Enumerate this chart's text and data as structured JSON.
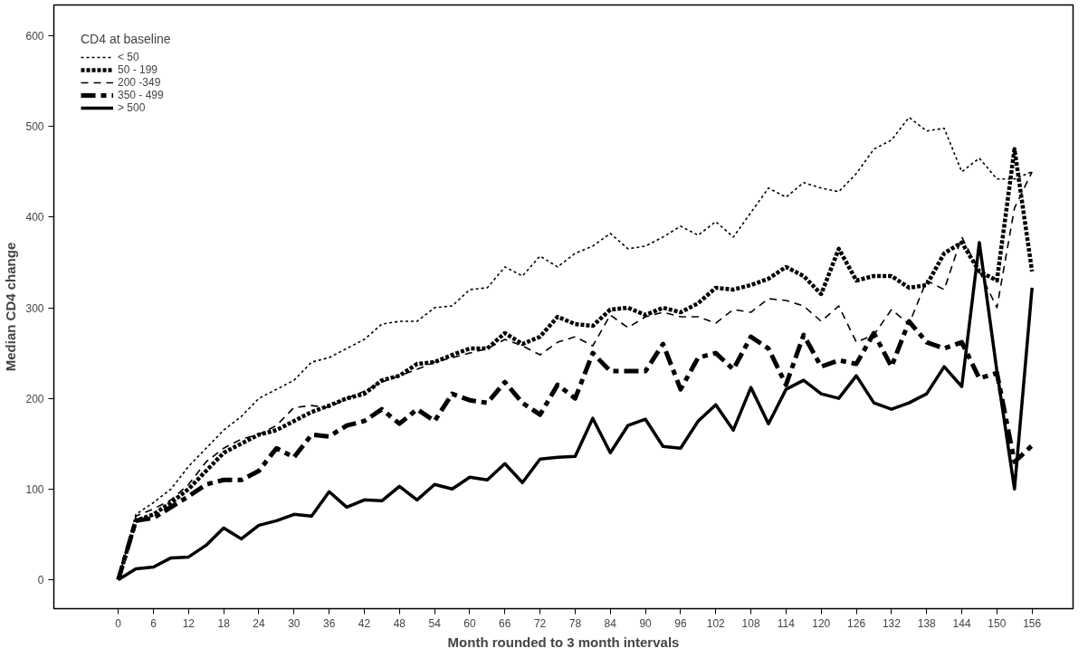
{
  "chart_data": {
    "type": "line",
    "xlabel": "Month rounded to 3 month intervals",
    "ylabel": "Median CD4 change",
    "legend_title": "CD4 at baseline",
    "legend": "top left",
    "grid": false,
    "x": [
      0,
      3,
      6,
      9,
      12,
      15,
      18,
      21,
      24,
      27,
      30,
      33,
      36,
      39,
      42,
      45,
      48,
      51,
      54,
      57,
      60,
      63,
      66,
      69,
      72,
      75,
      78,
      81,
      84,
      87,
      90,
      93,
      96,
      99,
      102,
      105,
      108,
      111,
      114,
      117,
      120,
      123,
      126,
      129,
      132,
      135,
      138,
      141,
      144,
      147,
      150,
      153,
      156
    ],
    "xlim": [
      -11,
      163
    ],
    "ylim": [
      -32,
      634
    ],
    "xticks": [
      0,
      6,
      12,
      18,
      24,
      30,
      36,
      42,
      48,
      54,
      60,
      66,
      72,
      78,
      84,
      90,
      96,
      102,
      108,
      114,
      120,
      126,
      132,
      138,
      144,
      150,
      156
    ],
    "yticks": [
      0,
      100,
      200,
      300,
      400,
      500,
      600
    ],
    "series": [
      {
        "name": "< 50",
        "color": "#000000",
        "line_style": "dotted",
        "values": [
          0,
          72,
          85,
          100,
          125,
          145,
          165,
          180,
          200,
          210,
          220,
          240,
          245,
          255,
          265,
          282,
          285,
          285,
          300,
          302,
          320,
          322,
          345,
          335,
          357,
          345,
          360,
          368,
          382,
          365,
          368,
          378,
          390,
          380,
          395,
          378,
          405,
          432,
          422,
          438,
          432,
          428,
          448,
          475,
          485,
          510,
          495,
          498,
          450,
          465,
          442,
          442,
          450
        ]
      },
      {
        "name": "50 - 199",
        "color": "#000000",
        "line_style": "dotted",
        "values": [
          0,
          65,
          72,
          85,
          100,
          120,
          140,
          150,
          160,
          165,
          175,
          185,
          192,
          200,
          205,
          220,
          225,
          238,
          240,
          248,
          255,
          255,
          272,
          260,
          268,
          290,
          282,
          280,
          298,
          300,
          292,
          300,
          295,
          305,
          322,
          320,
          325,
          332,
          345,
          335,
          315,
          365,
          330,
          335,
          335,
          322,
          325,
          360,
          372,
          340,
          330,
          475,
          340
        ]
      },
      {
        "name": "200 -349",
        "color": "#000000",
        "line_style": "dashed",
        "values": [
          0,
          70,
          78,
          88,
          105,
          130,
          145,
          155,
          160,
          170,
          190,
          192,
          190,
          200,
          208,
          218,
          225,
          232,
          240,
          245,
          250,
          255,
          265,
          258,
          248,
          262,
          268,
          258,
          292,
          278,
          290,
          295,
          290,
          290,
          283,
          298,
          295,
          310,
          308,
          302,
          285,
          302,
          262,
          270,
          298,
          282,
          330,
          320,
          378,
          340,
          300,
          410,
          450
        ]
      },
      {
        "name": "350 - 499",
        "color": "#000000",
        "line_style": "dashed",
        "values": [
          0,
          65,
          68,
          80,
          92,
          105,
          110,
          110,
          120,
          145,
          135,
          160,
          158,
          170,
          175,
          188,
          172,
          188,
          175,
          205,
          198,
          195,
          218,
          195,
          182,
          215,
          200,
          250,
          230,
          230,
          230,
          260,
          210,
          245,
          250,
          232,
          268,
          255,
          215,
          270,
          235,
          242,
          238,
          272,
          235,
          285,
          262,
          255,
          262,
          222,
          228,
          130,
          148
        ]
      },
      {
        "name": "> 500",
        "color": "#000000",
        "line_style": "solid",
        "values": [
          0,
          12,
          14,
          24,
          25,
          38,
          57,
          45,
          60,
          65,
          72,
          70,
          97,
          80,
          88,
          87,
          103,
          88,
          105,
          100,
          113,
          110,
          128,
          107,
          133,
          135,
          136,
          178,
          140,
          170,
          177,
          147,
          145,
          175,
          193,
          165,
          212,
          172,
          210,
          220,
          205,
          200,
          225,
          195,
          188,
          195,
          205,
          235,
          213,
          372,
          230,
          100,
          322
        ]
      }
    ]
  }
}
